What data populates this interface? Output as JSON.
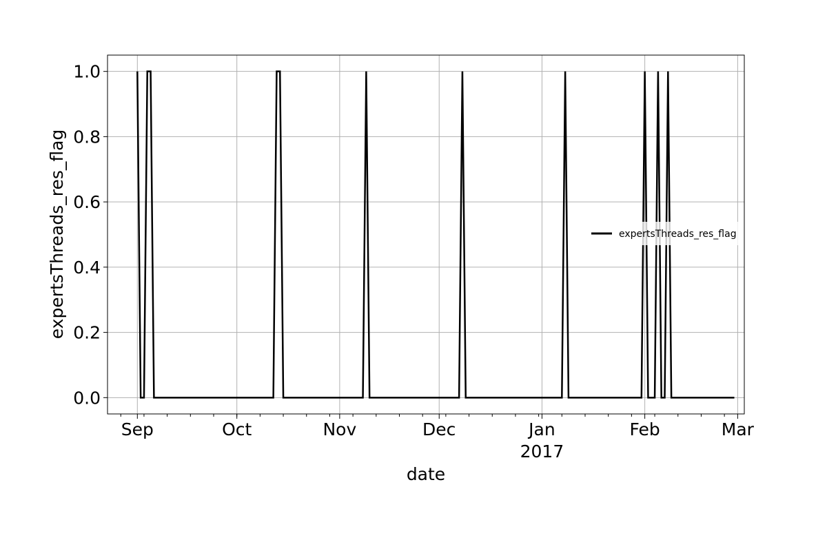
{
  "chart_data": {
    "type": "line",
    "xlabel": "date",
    "ylabel": "expertsThreads_res_flag",
    "xlim": [
      "2016-08-23",
      "2017-03-03"
    ],
    "ylim": [
      -0.05,
      1.05
    ],
    "grid": true,
    "legend_position": "center-right",
    "x_ticks": [
      {
        "date": "2016-09-01",
        "label": "Sep",
        "sublabel": ""
      },
      {
        "date": "2016-10-01",
        "label": "Oct",
        "sublabel": ""
      },
      {
        "date": "2016-11-01",
        "label": "Nov",
        "sublabel": ""
      },
      {
        "date": "2016-12-01",
        "label": "Dec",
        "sublabel": ""
      },
      {
        "date": "2017-01-01",
        "label": "Jan",
        "sublabel": "2017"
      },
      {
        "date": "2017-02-01",
        "label": "Feb",
        "sublabel": ""
      },
      {
        "date": "2017-03-01",
        "label": "Mar",
        "sublabel": ""
      }
    ],
    "y_ticks": [
      {
        "value": 0.0,
        "label": "0.0"
      },
      {
        "value": 0.2,
        "label": "0.2"
      },
      {
        "value": 0.4,
        "label": "0.4"
      },
      {
        "value": 0.6,
        "label": "0.6"
      },
      {
        "value": 0.8,
        "label": "0.8"
      },
      {
        "value": 1.0,
        "label": "1.0"
      }
    ],
    "series": [
      {
        "name": "expertsThreads_res_flag",
        "color": "#000000",
        "points": [
          {
            "x": "2016-09-01",
            "y": 1
          },
          {
            "x": "2016-09-02",
            "y": 0
          },
          {
            "x": "2016-09-03",
            "y": 0
          },
          {
            "x": "2016-09-04",
            "y": 1
          },
          {
            "x": "2016-09-05",
            "y": 1
          },
          {
            "x": "2016-09-06",
            "y": 0
          },
          {
            "x": "2016-10-12",
            "y": 0
          },
          {
            "x": "2016-10-13",
            "y": 1
          },
          {
            "x": "2016-10-14",
            "y": 1
          },
          {
            "x": "2016-10-15",
            "y": 0
          },
          {
            "x": "2016-11-08",
            "y": 0
          },
          {
            "x": "2016-11-09",
            "y": 1
          },
          {
            "x": "2016-11-10",
            "y": 0
          },
          {
            "x": "2016-12-07",
            "y": 0
          },
          {
            "x": "2016-12-08",
            "y": 1
          },
          {
            "x": "2016-12-09",
            "y": 0
          },
          {
            "x": "2017-01-07",
            "y": 0
          },
          {
            "x": "2017-01-08",
            "y": 1
          },
          {
            "x": "2017-01-09",
            "y": 0
          },
          {
            "x": "2017-01-31",
            "y": 0
          },
          {
            "x": "2017-02-01",
            "y": 1
          },
          {
            "x": "2017-02-02",
            "y": 0
          },
          {
            "x": "2017-02-04",
            "y": 0
          },
          {
            "x": "2017-02-05",
            "y": 1
          },
          {
            "x": "2017-02-06",
            "y": 0
          },
          {
            "x": "2017-02-07",
            "y": 0
          },
          {
            "x": "2017-02-08",
            "y": 1
          },
          {
            "x": "2017-02-09",
            "y": 0
          },
          {
            "x": "2017-02-28",
            "y": 0
          }
        ]
      }
    ]
  }
}
